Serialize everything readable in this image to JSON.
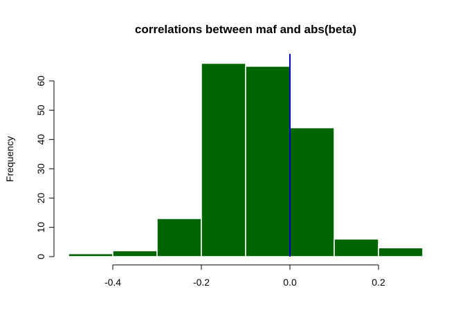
{
  "chart_data": {
    "type": "histogram",
    "title": "correlations between maf and abs(beta)",
    "xlabel": "",
    "ylabel": "Frequency",
    "xlim": [
      -0.5,
      0.3
    ],
    "ylim": [
      0,
      66
    ],
    "x_ticks": [
      -0.4,
      -0.2,
      0.0,
      0.2
    ],
    "x_tick_labels": [
      "-0.4",
      "-0.2",
      "0.0",
      "0.2"
    ],
    "y_ticks": [
      0,
      10,
      20,
      30,
      40,
      50,
      60
    ],
    "y_tick_labels": [
      "0",
      "10",
      "20",
      "30",
      "40",
      "50",
      "60"
    ],
    "bins": [
      {
        "start": -0.5,
        "end": -0.4,
        "count": 1
      },
      {
        "start": -0.4,
        "end": -0.3,
        "count": 2
      },
      {
        "start": -0.3,
        "end": -0.2,
        "count": 13
      },
      {
        "start": -0.2,
        "end": -0.1,
        "count": 66
      },
      {
        "start": -0.1,
        "end": 0.0,
        "count": 65
      },
      {
        "start": 0.0,
        "end": 0.1,
        "count": 44
      },
      {
        "start": 0.1,
        "end": 0.2,
        "count": 6
      },
      {
        "start": 0.2,
        "end": 0.3,
        "count": 3
      }
    ],
    "vertical_line": {
      "x": 0.0,
      "color": "#0000cc"
    },
    "bar_color": "#006400",
    "bar_border_color": "#ffffff",
    "grid": false,
    "legend": "none"
  }
}
